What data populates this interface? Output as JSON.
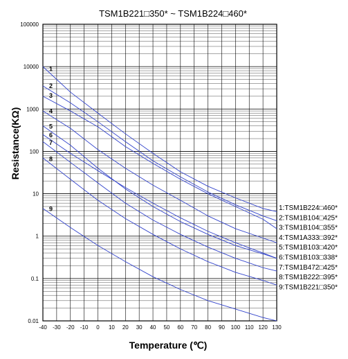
{
  "chart_data": {
    "type": "line",
    "title": "TSM1B221□350* ~ TSM1B224□460*",
    "xlabel": "Temperature (℃)",
    "ylabel": "Resistance(KΩ)",
    "xlim": [
      -40,
      130
    ],
    "ylim": [
      0.01,
      100000
    ],
    "yscale": "log",
    "grid": true,
    "x_ticks": [
      "-40",
      "-30",
      "-20",
      "-10",
      "0",
      "10",
      "20",
      "30",
      "40",
      "50",
      "60",
      "70",
      "80",
      "90",
      "100",
      "110",
      "120",
      "130"
    ],
    "y_ticks": [
      "100000",
      "10000",
      "1000",
      "100",
      "10",
      "1",
      "0.1",
      "0.01"
    ],
    "legend_position": "right",
    "series_color": "#3344cc",
    "series": [
      {
        "name": "1:TSM1B224□460*",
        "label": "1",
        "x": [
          -40,
          -20,
          0,
          20,
          40,
          60,
          80,
          100,
          120,
          130
        ],
        "values": [
          10000,
          2500,
          800,
          260,
          90,
          33,
          15,
          8,
          4.5,
          3.8
        ]
      },
      {
        "name": "2:TSM1B104□425*",
        "label": "2",
        "x": [
          -40,
          -20,
          0,
          20,
          40,
          60,
          80,
          100,
          120,
          130
        ],
        "values": [
          3500,
          1400,
          500,
          170,
          60,
          25,
          11,
          5.5,
          3,
          2.3
        ]
      },
      {
        "name": "3:TSM1B104□355*",
        "label": "3",
        "x": [
          -40,
          -20,
          0,
          20,
          40,
          60,
          80,
          100,
          120,
          130
        ],
        "values": [
          2000,
          900,
          380,
          130,
          52,
          22,
          10,
          5,
          2.5,
          1.5
        ]
      },
      {
        "name": "4:TSM1A333□392*",
        "label": "4",
        "x": [
          -40,
          -20,
          0,
          20,
          40,
          60,
          80,
          100,
          120,
          130
        ],
        "values": [
          900,
          350,
          110,
          40,
          16,
          7,
          3,
          1.5,
          0.9,
          0.7
        ]
      },
      {
        "name": "5:TSM1B103□420*",
        "label": "5",
        "x": [
          -40,
          -20,
          0,
          20,
          40,
          60,
          80,
          100,
          120,
          130
        ],
        "values": [
          400,
          140,
          40,
          13,
          5,
          2.2,
          1.1,
          0.6,
          0.38,
          0.3
        ]
      },
      {
        "name": "6:TSM1B103□338*",
        "label": "6",
        "x": [
          -40,
          -20,
          0,
          20,
          40,
          60,
          80,
          100,
          120,
          130
        ],
        "values": [
          250,
          90,
          35,
          14,
          6,
          2.7,
          1.3,
          0.7,
          0.4,
          0.3
        ]
      },
      {
        "name": "7:TSM1B472□425*",
        "label": "7",
        "x": [
          -40,
          -20,
          0,
          20,
          40,
          60,
          80,
          100,
          120,
          130
        ],
        "values": [
          170,
          55,
          18,
          6,
          2.4,
          1.1,
          0.55,
          0.3,
          0.18,
          0.15
        ]
      },
      {
        "name": "8:TSM1B222□395*",
        "label": "8",
        "x": [
          -40,
          -20,
          0,
          20,
          40,
          60,
          80,
          100,
          120,
          130
        ],
        "values": [
          70,
          22,
          7,
          2.6,
          1.1,
          0.5,
          0.25,
          0.14,
          0.09,
          0.07
        ]
      },
      {
        "name": "9:TSM1B221□350*",
        "label": "9",
        "x": [
          -40,
          -20,
          0,
          20,
          40,
          60,
          80,
          100,
          120,
          130
        ],
        "values": [
          4.5,
          1.6,
          0.6,
          0.25,
          0.11,
          0.055,
          0.03,
          0.019,
          0.012,
          0.01
        ]
      }
    ]
  }
}
